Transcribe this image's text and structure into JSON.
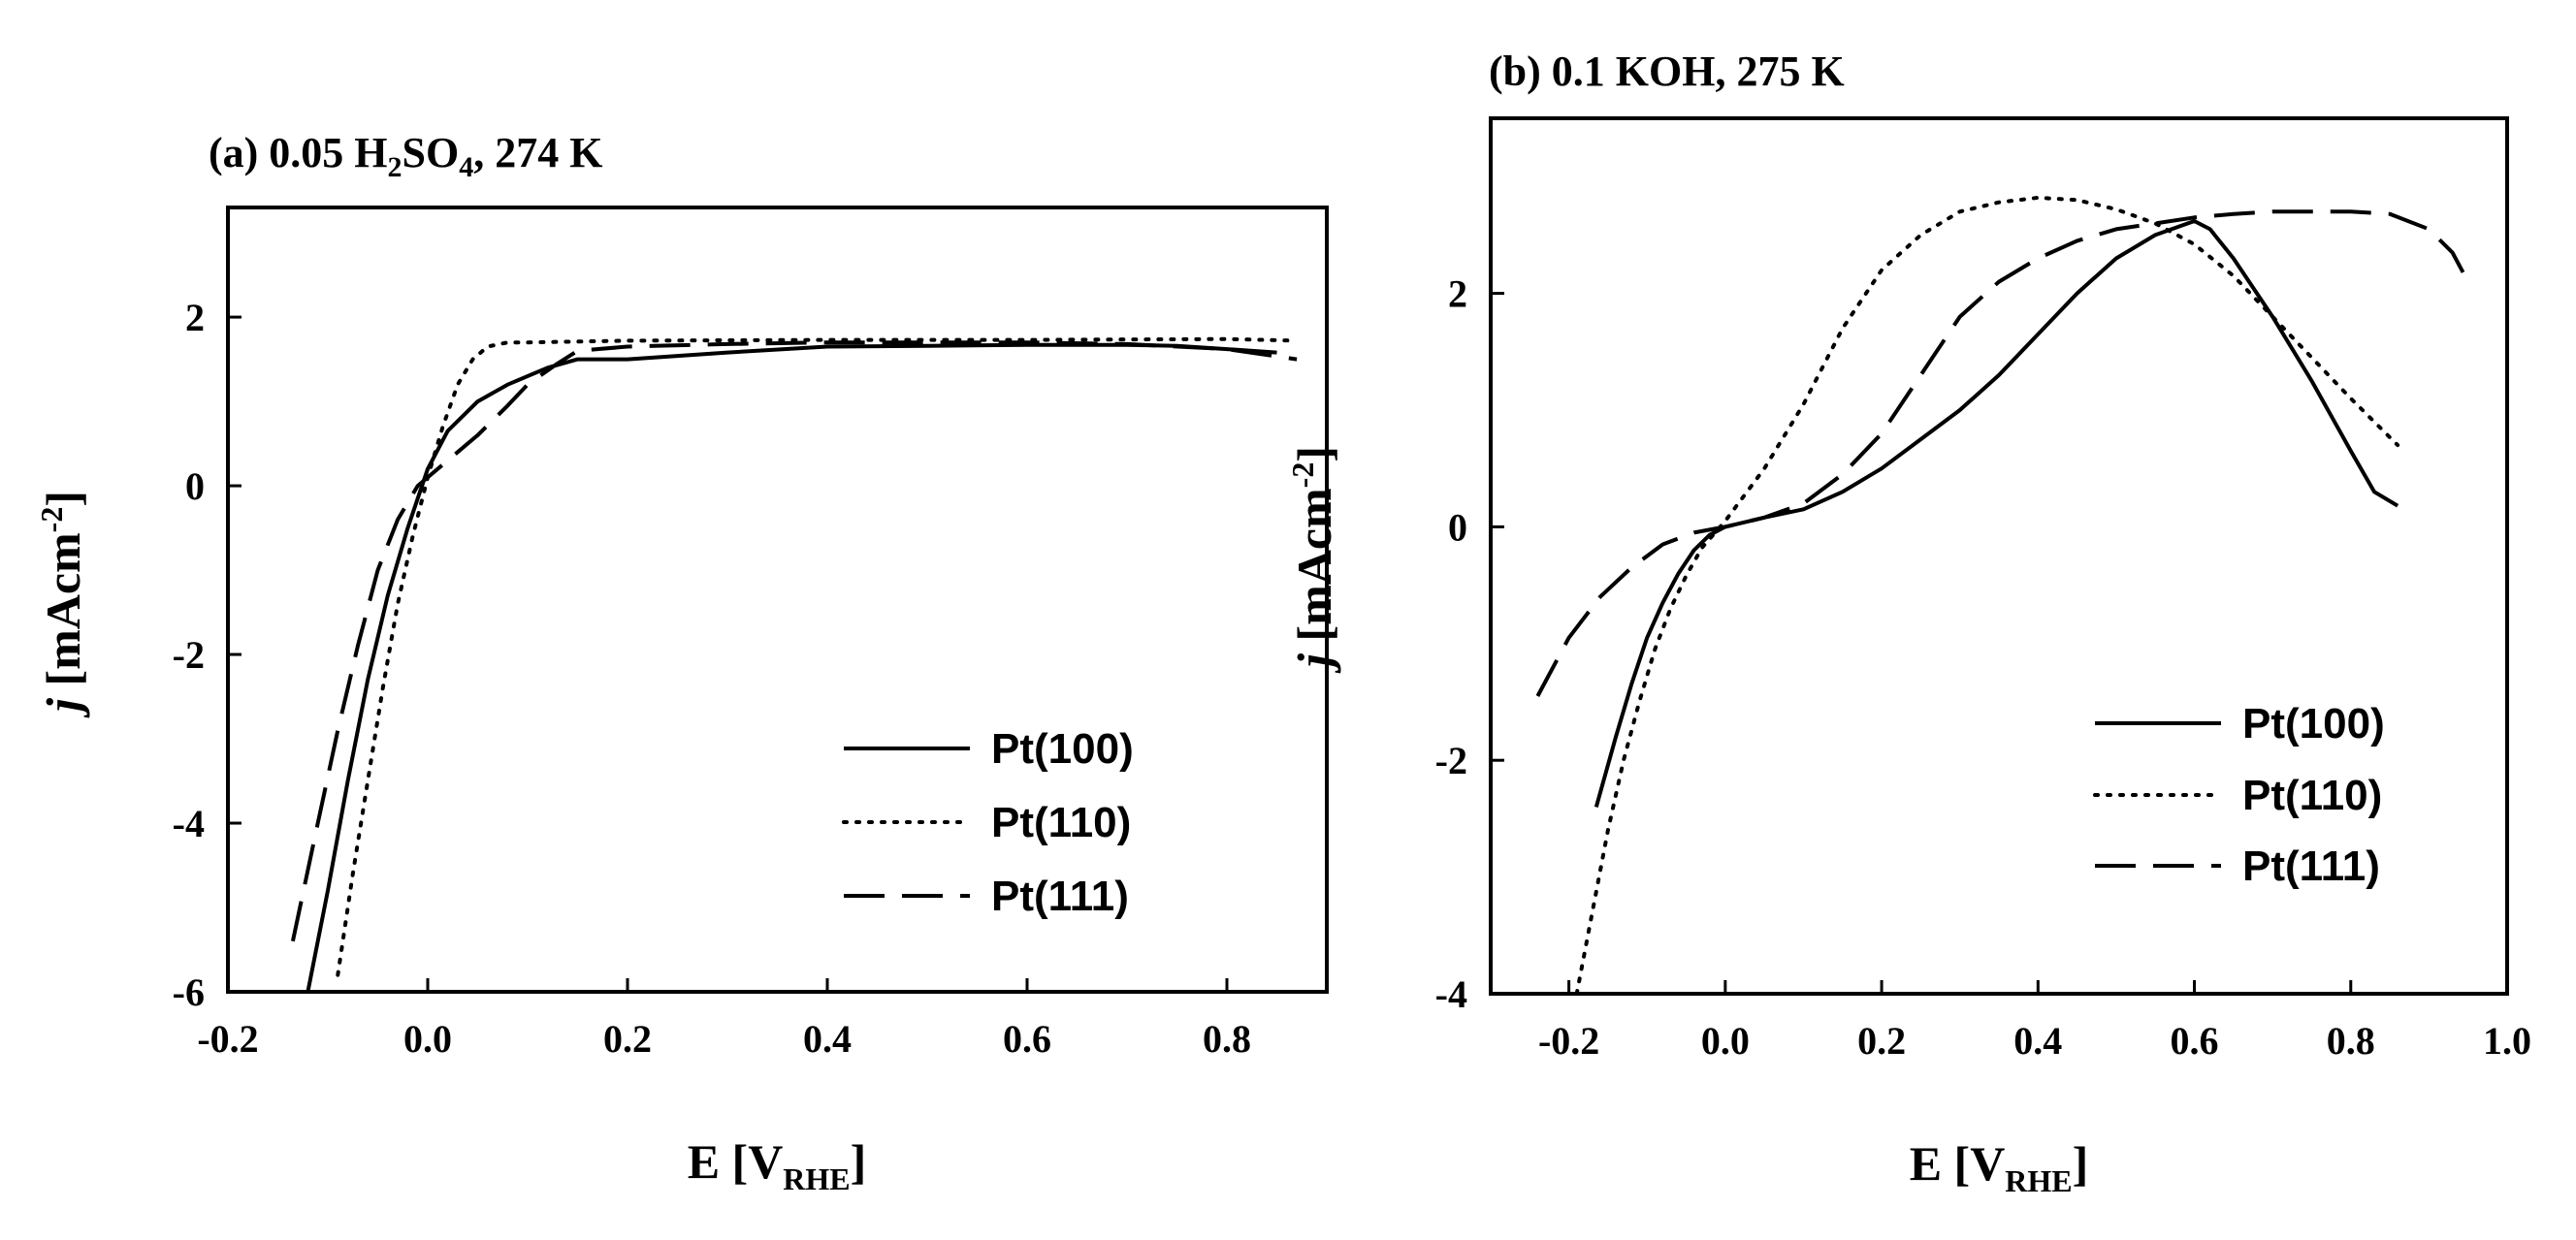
{
  "chart_data": [
    {
      "type": "line",
      "title": {
        "prefix": "(a) 0.05 H",
        "sub1": "2",
        "mid": "SO",
        "sub2": "4",
        "suffix": ", 274 K"
      },
      "xlabel": {
        "main": "E [V",
        "sub": "RHE",
        "close": "]"
      },
      "ylabel": {
        "italic": "j",
        "main": " [mAcm",
        "sup": "-2",
        "close": "]"
      },
      "xlim": [
        -0.2,
        0.9
      ],
      "ylim": [
        -6,
        3.3
      ],
      "xticks": [
        -0.2,
        0.0,
        0.2,
        0.4,
        0.6,
        0.8
      ],
      "xtick_labels": [
        "-0.2",
        "0.0",
        "0.2",
        "0.4",
        "0.6",
        "0.8"
      ],
      "yticks": [
        2,
        0,
        -2,
        -4,
        -6
      ],
      "ytick_labels": [
        "2",
        "0",
        "-2",
        "-4",
        "-6"
      ],
      "legend_position": "bottom-right",
      "series": [
        {
          "name": "Pt(100)",
          "style": "solid",
          "x": [
            -0.12,
            -0.1,
            -0.08,
            -0.06,
            -0.04,
            -0.02,
            0.0,
            0.02,
            0.05,
            0.08,
            0.12,
            0.15,
            0.2,
            0.3,
            0.4,
            0.5,
            0.6,
            0.7,
            0.75,
            0.8,
            0.85
          ],
          "y": [
            -6.0,
            -4.8,
            -3.5,
            -2.3,
            -1.3,
            -0.5,
            0.2,
            0.65,
            1.0,
            1.2,
            1.4,
            1.5,
            1.5,
            1.58,
            1.65,
            1.66,
            1.67,
            1.67,
            1.66,
            1.62,
            1.58
          ]
        },
        {
          "name": "Pt(110)",
          "style": "dotted",
          "x": [
            -0.09,
            -0.075,
            -0.06,
            -0.045,
            -0.03,
            -0.015,
            0.0,
            0.015,
            0.03,
            0.045,
            0.06,
            0.08,
            0.1,
            0.2,
            0.4,
            0.6,
            0.8,
            0.87
          ],
          "y": [
            -5.8,
            -4.6,
            -3.5,
            -2.4,
            -1.4,
            -0.6,
            0.1,
            0.7,
            1.2,
            1.5,
            1.65,
            1.7,
            1.7,
            1.72,
            1.73,
            1.73,
            1.74,
            1.72
          ]
        },
        {
          "name": "Pt(111)",
          "style": "dashed",
          "x": [
            -0.135,
            -0.11,
            -0.09,
            -0.07,
            -0.05,
            -0.03,
            -0.01,
            0.0,
            0.02,
            0.05,
            0.08,
            0.1,
            0.13,
            0.15,
            0.2,
            0.3,
            0.4,
            0.5,
            0.6,
            0.7,
            0.8,
            0.87
          ],
          "y": [
            -5.4,
            -4.0,
            -2.9,
            -1.9,
            -1.0,
            -0.4,
            0.0,
            0.1,
            0.3,
            0.6,
            0.95,
            1.2,
            1.45,
            1.6,
            1.65,
            1.68,
            1.7,
            1.7,
            1.7,
            1.68,
            1.62,
            1.5
          ]
        }
      ]
    },
    {
      "type": "line",
      "title": {
        "text": "(b) 0.1 KOH, 275 K"
      },
      "xlabel": {
        "main": "E [V",
        "sub": "RHE",
        "close": "]"
      },
      "ylabel": {
        "italic": "j",
        "main": " [mAcm",
        "sup": "-2",
        "close": "]"
      },
      "xlim": [
        -0.3,
        1.0
      ],
      "ylim": [
        -4,
        3.5
      ],
      "xticks": [
        -0.2,
        0.0,
        0.2,
        0.4,
        0.6,
        0.8,
        1.0
      ],
      "xtick_labels": [
        "-0.2",
        "0.0",
        "0.2",
        "0.4",
        "0.6",
        "0.8",
        "1.0"
      ],
      "yticks": [
        2,
        0,
        -2,
        -4
      ],
      "ytick_labels": [
        "2",
        "0",
        "-2",
        "-4"
      ],
      "legend_position": "bottom-right",
      "series": [
        {
          "name": "Pt(100)",
          "style": "solid",
          "x": [
            -0.165,
            -0.14,
            -0.12,
            -0.1,
            -0.08,
            -0.06,
            -0.04,
            -0.02,
            0.0,
            0.05,
            0.1,
            0.15,
            0.2,
            0.25,
            0.3,
            0.35,
            0.4,
            0.45,
            0.5,
            0.55,
            0.6,
            0.62,
            0.65,
            0.7,
            0.75,
            0.8,
            0.83,
            0.86
          ],
          "y": [
            -2.4,
            -1.8,
            -1.35,
            -0.95,
            -0.65,
            -0.4,
            -0.2,
            -0.07,
            0.0,
            0.08,
            0.15,
            0.3,
            0.5,
            0.75,
            1.0,
            1.3,
            1.65,
            2.0,
            2.3,
            2.5,
            2.62,
            2.55,
            2.3,
            1.8,
            1.25,
            0.65,
            0.3,
            0.18
          ]
        },
        {
          "name": "Pt(110)",
          "style": "dotted",
          "x": [
            -0.19,
            -0.17,
            -0.15,
            -0.13,
            -0.11,
            -0.09,
            -0.07,
            -0.05,
            -0.03,
            0.0,
            0.05,
            0.1,
            0.15,
            0.2,
            0.25,
            0.3,
            0.35,
            0.4,
            0.45,
            0.5,
            0.55,
            0.6,
            0.65,
            0.7,
            0.75,
            0.8,
            0.86
          ],
          "y": [
            -4.0,
            -3.3,
            -2.6,
            -2.0,
            -1.5,
            -1.05,
            -0.7,
            -0.42,
            -0.18,
            0.05,
            0.5,
            1.05,
            1.7,
            2.2,
            2.5,
            2.7,
            2.78,
            2.82,
            2.8,
            2.72,
            2.6,
            2.42,
            2.15,
            1.8,
            1.45,
            1.1,
            0.7
          ]
        },
        {
          "name": "Pt(111)",
          "style": "dashed",
          "x": [
            -0.24,
            -0.2,
            -0.16,
            -0.12,
            -0.08,
            -0.04,
            0.0,
            0.05,
            0.1,
            0.15,
            0.2,
            0.25,
            0.3,
            0.35,
            0.4,
            0.45,
            0.5,
            0.55,
            0.6,
            0.65,
            0.7,
            0.75,
            0.8,
            0.85,
            0.9,
            0.93,
            0.95
          ],
          "y": [
            -1.45,
            -0.95,
            -0.6,
            -0.35,
            -0.15,
            -0.05,
            0.0,
            0.08,
            0.2,
            0.45,
            0.8,
            1.3,
            1.8,
            2.1,
            2.3,
            2.45,
            2.55,
            2.6,
            2.65,
            2.68,
            2.7,
            2.7,
            2.7,
            2.68,
            2.55,
            2.35,
            2.1
          ]
        }
      ]
    }
  ]
}
